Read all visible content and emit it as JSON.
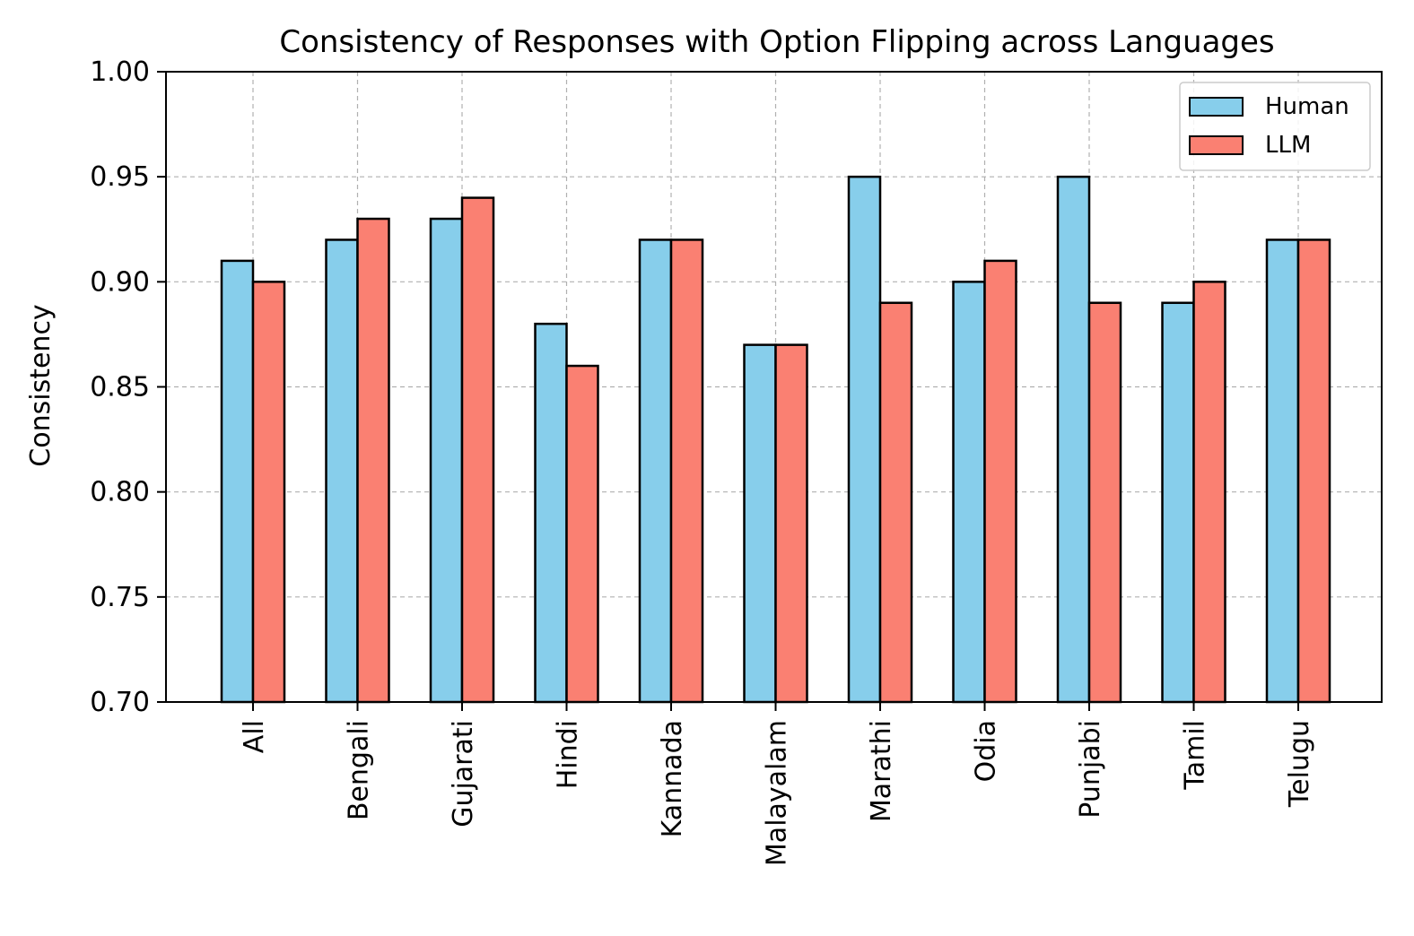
{
  "chart_data": {
    "type": "bar",
    "title": "Consistency of Responses with Option Flipping across Languages",
    "xlabel": "",
    "ylabel": "Consistency",
    "categories": [
      "All",
      "Bengali",
      "Gujarati",
      "Hindi",
      "Kannada",
      "Malayalam",
      "Marathi",
      "Odia",
      "Punjabi",
      "Tamil",
      "Telugu"
    ],
    "series": [
      {
        "name": "Human",
        "color": "#87CEEB",
        "values": [
          0.91,
          0.92,
          0.93,
          0.88,
          0.92,
          0.87,
          0.95,
          0.9,
          0.95,
          0.89,
          0.92
        ]
      },
      {
        "name": "LLM",
        "color": "#FA8072",
        "values": [
          0.9,
          0.93,
          0.94,
          0.86,
          0.92,
          0.87,
          0.89,
          0.91,
          0.89,
          0.9,
          0.92
        ]
      }
    ],
    "ylim": [
      0.7,
      1.0
    ],
    "yticks": [
      "0.70",
      "0.75",
      "0.80",
      "0.85",
      "0.90",
      "0.95",
      "1.00"
    ],
    "grid": true,
    "legend_position": "top-right"
  }
}
